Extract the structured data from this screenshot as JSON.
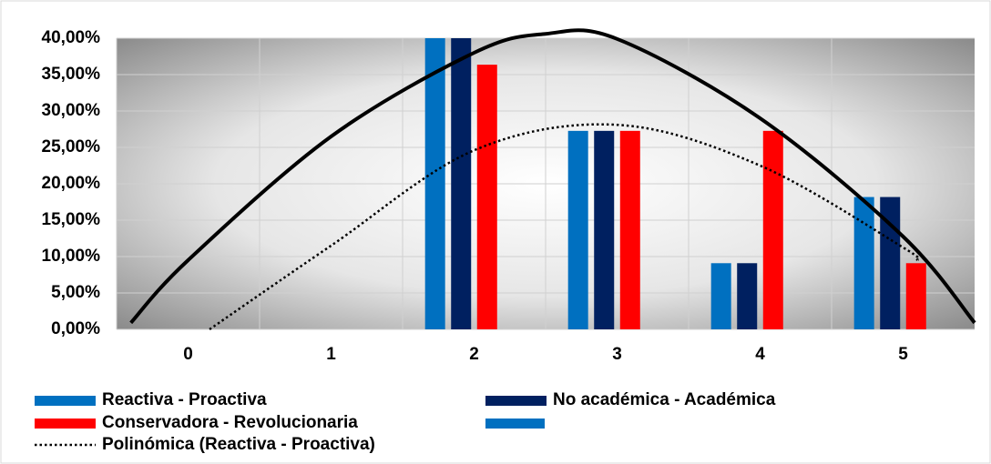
{
  "chart_data": {
    "type": "bar",
    "categories": [
      "0",
      "1",
      "2",
      "3",
      "4",
      "5"
    ],
    "series": [
      {
        "name": "Reactiva - Proactiva",
        "color": "#0070c0",
        "values": [
          0,
          0,
          40,
          27.27,
          9.09,
          18.18
        ]
      },
      {
        "name": "No académica - Académica",
        "color": "#002060",
        "values": [
          0,
          0,
          40,
          27.27,
          9.09,
          18.18
        ]
      },
      {
        "name": "Conservadora - Revolucionaria",
        "color": "#ff0000",
        "values": [
          0,
          0,
          36.36,
          27.27,
          27.27,
          9.09
        ]
      }
    ],
    "trendlines": [
      {
        "style": "solid",
        "color": "#000000",
        "x": [
          -0.4,
          0,
          1,
          2,
          2.5,
          3,
          4,
          5,
          5.5
        ],
        "values": [
          0.9,
          9.5,
          26.5,
          38,
          40.6,
          39.9,
          29,
          12.75,
          0.9
        ]
      },
      {
        "name": "Polinómica (Reactiva - Proactiva)",
        "style": "dotted",
        "color": "#000000",
        "x": [
          0.15,
          1,
          2,
          3,
          4,
          5,
          5.1
        ],
        "values": [
          0,
          11.5,
          24.6,
          28.1,
          22.5,
          11.25,
          9.5
        ]
      }
    ],
    "ylim": [
      0,
      40
    ],
    "yticks": [
      {
        "value": 0,
        "label": "0,00%"
      },
      {
        "value": 5,
        "label": "5,00%"
      },
      {
        "value": 10,
        "label": "10,00%"
      },
      {
        "value": 15,
        "label": "15,00%"
      },
      {
        "value": 20,
        "label": "20,00%"
      },
      {
        "value": 25,
        "label": "25,00%"
      },
      {
        "value": 30,
        "label": "30,00%"
      },
      {
        "value": 35,
        "label": "35,00%"
      },
      {
        "value": 40,
        "label": "40,00%"
      }
    ],
    "grid": true
  }
}
